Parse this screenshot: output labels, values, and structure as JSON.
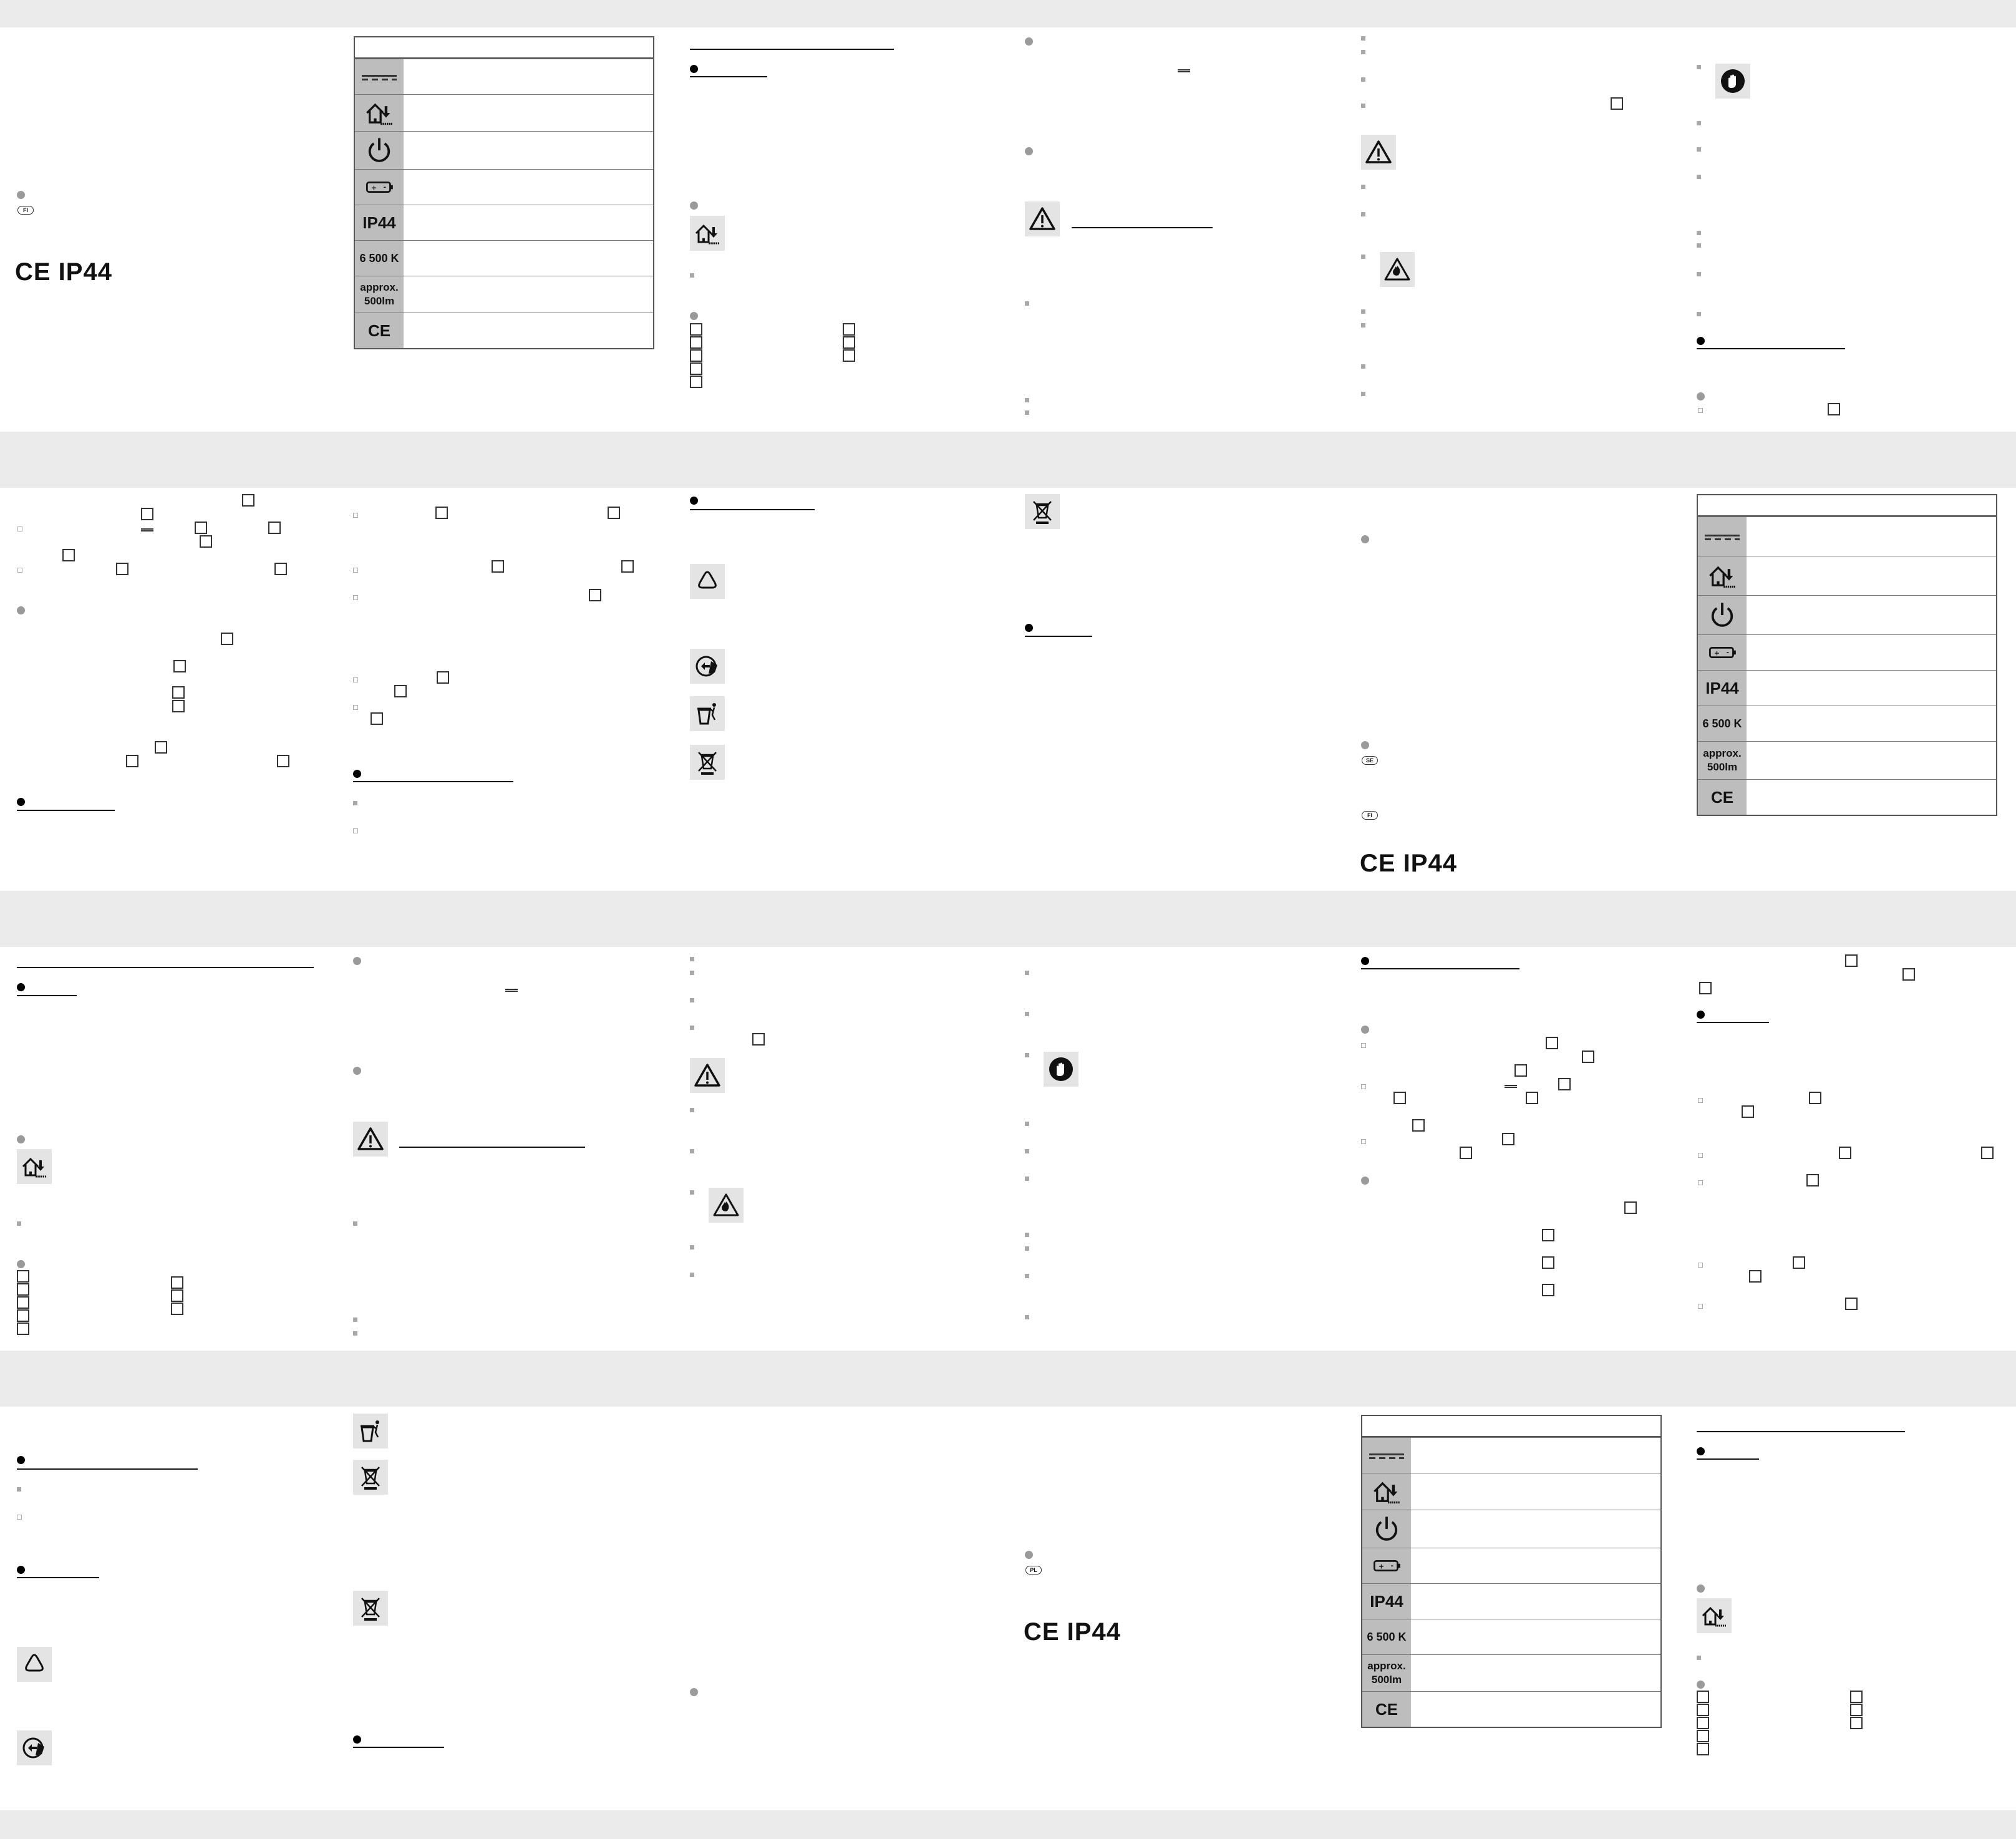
{
  "symbols": {
    "ip_rating": "IP44",
    "ce_mark": "CE",
    "ce_ip": "CE IP44",
    "color_temp": "6 500 K",
    "lumen_line1": "approx.",
    "lumen_line2": "500lm",
    "lang_fi": "FI",
    "lang_se": "SE",
    "lang_pl": "PL"
  },
  "icons": [
    "dc-current-icon",
    "indoor-outdoor-icon",
    "power-icon",
    "battery-icon",
    "warning-icon",
    "fire-warning-icon",
    "gloves-icon",
    "recycle-icon",
    "paper-recycle-icon",
    "bin-icon",
    "crossed-bin-icon"
  ],
  "colors": {
    "band": "#ebebeb",
    "symbol_cell": "#bdbdbd",
    "text": "#111111"
  }
}
